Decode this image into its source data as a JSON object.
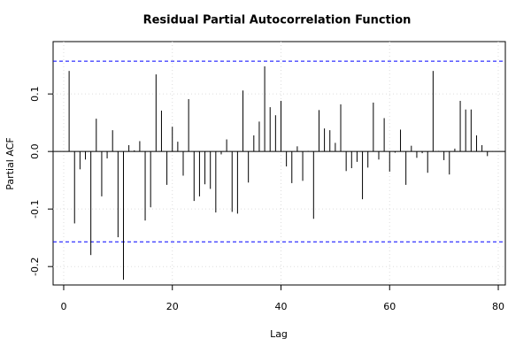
{
  "chart_data": {
    "type": "stem",
    "title": "Residual Partial Autocorrelation Function",
    "xlabel": "Lag",
    "ylabel": "Partial ACF",
    "x": [
      1,
      2,
      3,
      4,
      5,
      6,
      7,
      8,
      9,
      10,
      11,
      12,
      13,
      14,
      15,
      16,
      17,
      18,
      19,
      20,
      21,
      22,
      23,
      24,
      25,
      26,
      27,
      28,
      29,
      30,
      31,
      32,
      33,
      34,
      35,
      36,
      37,
      38,
      39,
      40,
      41,
      42,
      43,
      44,
      45,
      46,
      47,
      48,
      49,
      50,
      51,
      52,
      53,
      54,
      55,
      56,
      57,
      58,
      59,
      60,
      61,
      62,
      63,
      64,
      65,
      66,
      67,
      68,
      69,
      70,
      71,
      72,
      73,
      74,
      75,
      76,
      77,
      78
    ],
    "values": [
      0.14,
      -0.125,
      -0.031,
      -0.014,
      -0.18,
      0.057,
      -0.078,
      -0.012,
      0.037,
      -0.149,
      -0.223,
      0.011,
      0.002,
      0.018,
      -0.12,
      -0.097,
      0.134,
      0.071,
      -0.058,
      0.043,
      0.017,
      -0.042,
      0.091,
      -0.086,
      -0.078,
      -0.057,
      -0.065,
      -0.106,
      -0.005,
      0.021,
      -0.105,
      -0.108,
      0.106,
      -0.054,
      0.028,
      0.052,
      0.148,
      0.077,
      0.063,
      0.088,
      -0.026,
      -0.055,
      0.009,
      -0.051,
      0.001,
      -0.117,
      0.072,
      0.04,
      0.037,
      0.015,
      0.082,
      -0.034,
      -0.029,
      -0.018,
      -0.083,
      -0.028,
      0.085,
      -0.014,
      0.058,
      -0.035,
      -0.002,
      0.038,
      -0.058,
      0.01,
      -0.011,
      -0.003,
      -0.037,
      0.14,
      0.001,
      -0.015,
      -0.04,
      0.005,
      0.088,
      0.073,
      0.073,
      0.028,
      0.011,
      -0.008
    ],
    "color": "#000000",
    "conf_bounds": [
      0.157,
      -0.157
    ],
    "conf_color": "#0000ff",
    "xlim": [
      -1.95,
      81.3
    ],
    "ylim": [
      -0.232,
      0.191
    ],
    "xticks": [
      0,
      20,
      40,
      60,
      80
    ],
    "yticks": [
      -0.2,
      -0.1,
      {
        "value": 0,
        "label": "0.0"
      },
      0.1
    ],
    "grid": true
  }
}
